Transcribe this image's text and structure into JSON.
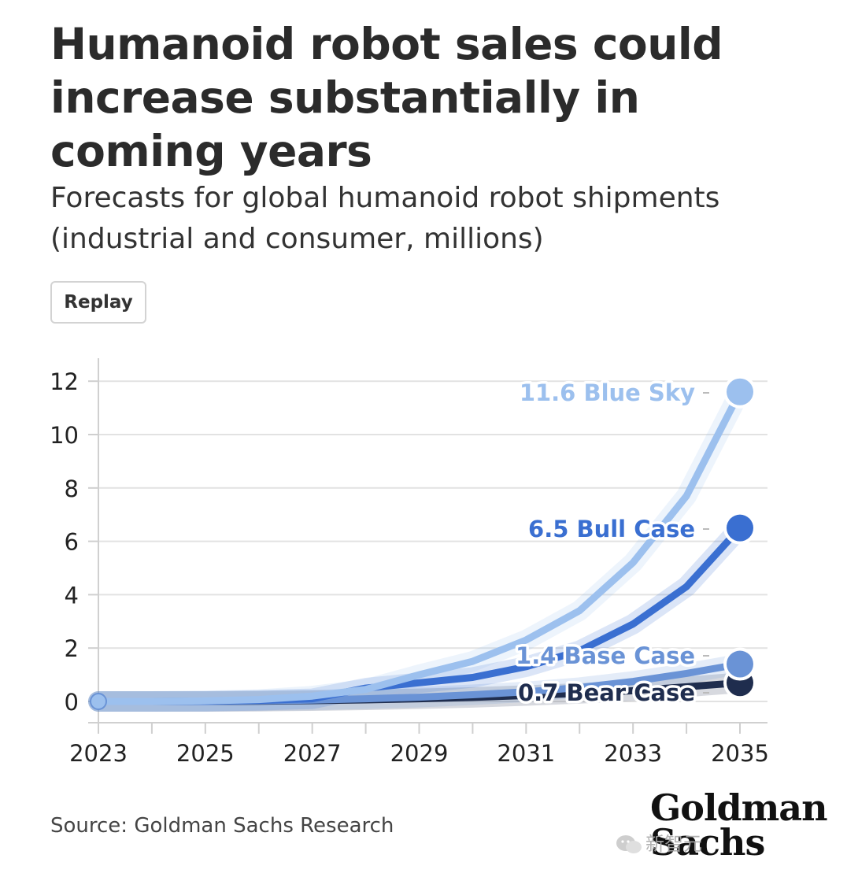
{
  "title": "Humanoid robot sales could increase substantially in coming years",
  "subtitle": "Forecasts for global humanoid robot shipments (industrial and consumer, millions)",
  "replay_label": "Replay",
  "source": "Source: Goldman Sachs Research",
  "logo": {
    "line1": "Goldman",
    "line2": "Sachs"
  },
  "watermark": "新智元",
  "chart_data": {
    "type": "line",
    "x": [
      2023,
      2024,
      2025,
      2026,
      2027,
      2028,
      2029,
      2030,
      2031,
      2032,
      2033,
      2034,
      2035
    ],
    "xticks": [
      2023,
      2025,
      2027,
      2029,
      2031,
      2033,
      2035
    ],
    "yticks": [
      0,
      2,
      4,
      6,
      8,
      10,
      12
    ],
    "xlim": [
      2023,
      2035
    ],
    "ylim": [
      -0.8,
      12.5
    ],
    "grid": "horizontal",
    "series": [
      {
        "name": "Bear Case",
        "end_label": "0.7 Bear Case",
        "color": "#1f2d4e",
        "values": [
          0,
          0,
          0,
          0.01,
          0.03,
          0.06,
          0.1,
          0.15,
          0.22,
          0.3,
          0.4,
          0.55,
          0.7
        ]
      },
      {
        "name": "Base Case",
        "end_label": "1.4 Base Case",
        "color": "#6a93d6",
        "values": [
          0,
          0,
          0,
          0.02,
          0.05,
          0.1,
          0.16,
          0.25,
          0.36,
          0.52,
          0.75,
          1.05,
          1.4
        ]
      },
      {
        "name": "Bull Case",
        "end_label": "6.5 Bull Case",
        "color": "#3a6fd1",
        "values": [
          0,
          0,
          0.01,
          0.04,
          0.1,
          0.5,
          0.7,
          0.9,
          1.3,
          1.9,
          2.9,
          4.3,
          6.5
        ]
      },
      {
        "name": "Blue Sky",
        "end_label": "11.6 Blue Sky",
        "color": "#9cc0ee",
        "values": [
          0,
          0,
          0.02,
          0.07,
          0.2,
          0.45,
          1.0,
          1.5,
          2.3,
          3.4,
          5.2,
          7.7,
          11.6
        ]
      }
    ]
  }
}
